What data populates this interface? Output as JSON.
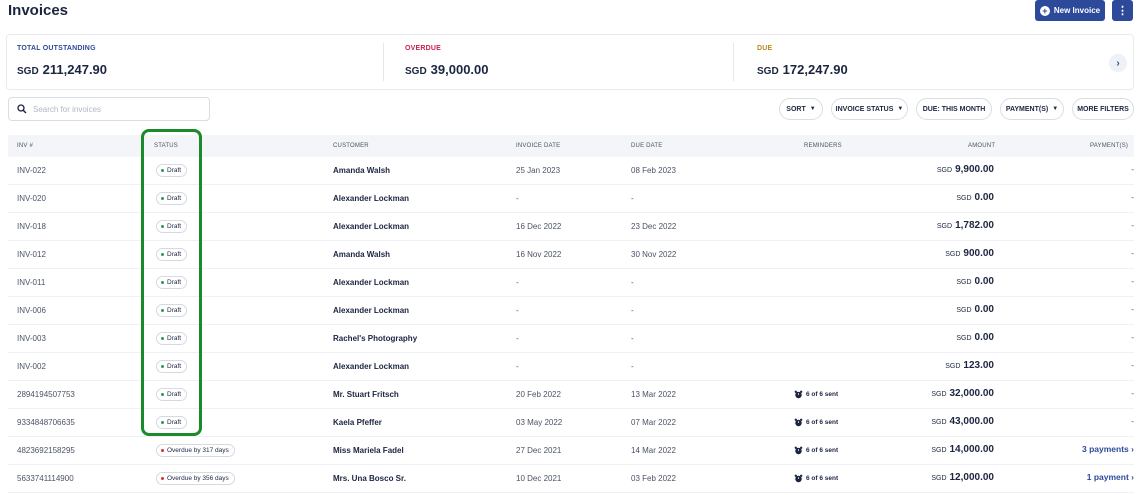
{
  "page": {
    "title": "Invoices"
  },
  "header": {
    "new_invoice_label": "New Invoice",
    "more_label": "⋮"
  },
  "summary": {
    "total_outstanding": {
      "label": "TOTAL OUTSTANDING",
      "currency": "SGD",
      "value": "211,247.90",
      "color": "#2d4a9a"
    },
    "overdue": {
      "label": "OVERDUE",
      "currency": "SGD",
      "value": "39,000.00",
      "color": "#c8234b"
    },
    "due": {
      "label": "DUE",
      "currency": "SGD",
      "value": "172,247.90",
      "color": "#b98a1c"
    },
    "next_label": "›"
  },
  "search": {
    "placeholder": "Search for invoices"
  },
  "filters": {
    "sort": "SORT",
    "invoice_status": "INVOICE STATUS",
    "due": "DUE: THIS MONTH",
    "payments": "PAYMENT(S)",
    "more": "MORE FILTERS"
  },
  "table": {
    "columns": {
      "inv": "INV #",
      "status": "STATUS",
      "customer": "CUSTOMER",
      "invoice_date": "INVOICE DATE",
      "due_date": "DUE DATE",
      "reminders": "REMINDERS",
      "amount": "AMOUNT",
      "payments": "PAYMENT(S)"
    },
    "rows": [
      {
        "inv": "INV-022",
        "status": "Draft",
        "status_type": "draft",
        "customer": "Amanda Walsh",
        "invoice_date": "25 Jan 2023",
        "due_date": "08 Feb 2023",
        "reminders": "",
        "currency": "SGD",
        "amount": "9,900.00",
        "payments": "-"
      },
      {
        "inv": "INV-020",
        "status": "Draft",
        "status_type": "draft",
        "customer": "Alexander Lockman",
        "invoice_date": "-",
        "due_date": "-",
        "reminders": "",
        "currency": "SGD",
        "amount": "0.00",
        "payments": "-"
      },
      {
        "inv": "INV-018",
        "status": "Draft",
        "status_type": "draft",
        "customer": "Alexander Lockman",
        "invoice_date": "16 Dec 2022",
        "due_date": "23 Dec 2022",
        "reminders": "",
        "currency": "SGD",
        "amount": "1,782.00",
        "payments": "-"
      },
      {
        "inv": "INV-012",
        "status": "Draft",
        "status_type": "draft",
        "customer": "Amanda Walsh",
        "invoice_date": "16 Nov 2022",
        "due_date": "30 Nov 2022",
        "reminders": "",
        "currency": "SGD",
        "amount": "900.00",
        "payments": "-"
      },
      {
        "inv": "INV-011",
        "status": "Draft",
        "status_type": "draft",
        "customer": "Alexander Lockman",
        "invoice_date": "-",
        "due_date": "-",
        "reminders": "",
        "currency": "SGD",
        "amount": "0.00",
        "payments": "-"
      },
      {
        "inv": "INV-006",
        "status": "Draft",
        "status_type": "draft",
        "customer": "Alexander Lockman",
        "invoice_date": "-",
        "due_date": "-",
        "reminders": "",
        "currency": "SGD",
        "amount": "0.00",
        "payments": "-"
      },
      {
        "inv": "INV-003",
        "status": "Draft",
        "status_type": "draft",
        "customer": "Rachel's Photography",
        "invoice_date": "-",
        "due_date": "-",
        "reminders": "",
        "currency": "SGD",
        "amount": "0.00",
        "payments": "-"
      },
      {
        "inv": "INV-002",
        "status": "Draft",
        "status_type": "draft",
        "customer": "Alexander Lockman",
        "invoice_date": "-",
        "due_date": "-",
        "reminders": "",
        "currency": "SGD",
        "amount": "123.00",
        "payments": "-"
      },
      {
        "inv": "2894194507753",
        "status": "Draft",
        "status_type": "draft",
        "customer": "Mr. Stuart Fritsch",
        "invoice_date": "20 Feb 2022",
        "due_date": "13 Mar 2022",
        "reminders": "6 of 6 sent",
        "currency": "SGD",
        "amount": "32,000.00",
        "payments": "-"
      },
      {
        "inv": "9334848706635",
        "status": "Draft",
        "status_type": "draft",
        "customer": "Kaela Pfeffer",
        "invoice_date": "03 May 2022",
        "due_date": "07 Mar 2022",
        "reminders": "6 of 6 sent",
        "currency": "SGD",
        "amount": "43,000.00",
        "payments": "-"
      },
      {
        "inv": "4823692158295",
        "status": "Overdue by 317 days",
        "status_type": "overdue",
        "customer": "Miss Mariela Fadel",
        "invoice_date": "27 Dec 2021",
        "due_date": "14 Mar 2022",
        "reminders": "6 of 6 sent",
        "currency": "SGD",
        "amount": "14,000.00",
        "payments": "3 payments"
      },
      {
        "inv": "5633741114900",
        "status": "Overdue by 356 days",
        "status_type": "overdue",
        "customer": "Mrs. Una Bosco Sr.",
        "invoice_date": "10 Dec 2021",
        "due_date": "03 Feb 2022",
        "reminders": "6 of 6 sent",
        "currency": "SGD",
        "amount": "12,000.00",
        "payments": "1 payment"
      }
    ]
  },
  "colors": {
    "accent": "#2d4a9a",
    "draft_dot": "#2e9a57",
    "overdue_dot": "#d63031",
    "highlight": "#1a8a2a"
  }
}
